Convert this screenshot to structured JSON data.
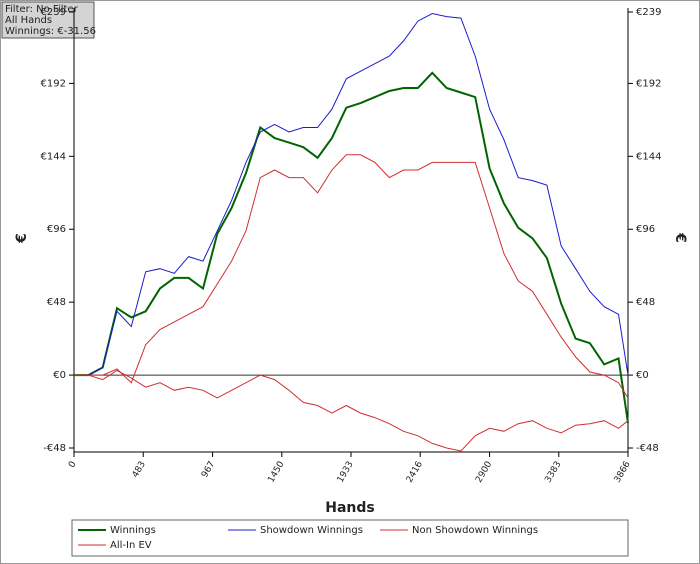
{
  "chart_data": {
    "type": "line",
    "info": [
      "Filter: No Filter",
      "All Hands",
      "Winnings: €-31.56"
    ],
    "x_label": "Hands",
    "y_label": "€",
    "y2_label": "€",
    "xlim": [
      0,
      3866
    ],
    "xticks": [
      0,
      483,
      967,
      1450,
      1933,
      2416,
      2900,
      3383,
      3866
    ],
    "ylim": [
      -48,
      239
    ],
    "yticks": [
      {
        "value": -48,
        "label": "-€48"
      },
      {
        "value": 0,
        "label": "€0"
      },
      {
        "value": 48,
        "label": "€48"
      },
      {
        "value": 96,
        "label": "€96"
      },
      {
        "value": 144,
        "label": "€144"
      },
      {
        "value": 192,
        "label": "€192"
      },
      {
        "value": 239,
        "label": "€239"
      }
    ],
    "y2lim": [
      -48,
      239
    ],
    "y2ticks": [
      {
        "value": -48,
        "label": "-€48"
      },
      {
        "value": 0,
        "label": "€0"
      },
      {
        "value": 48,
        "label": "€48"
      },
      {
        "value": 96,
        "label": "€96"
      },
      {
        "value": 144,
        "label": "€144"
      },
      {
        "value": 192,
        "label": "€192"
      },
      {
        "value": 239,
        "label": "€239"
      }
    ],
    "x": [
      0,
      100,
      200,
      300,
      400,
      500,
      600,
      700,
      800,
      900,
      1000,
      1100,
      1200,
      1300,
      1400,
      1500,
      1600,
      1700,
      1800,
      1900,
      2000,
      2100,
      2200,
      2300,
      2400,
      2500,
      2600,
      2700,
      2800,
      2900,
      3000,
      3100,
      3200,
      3300,
      3400,
      3500,
      3600,
      3700,
      3800,
      3866
    ],
    "series": [
      {
        "name": "Winnings",
        "color": "#006400",
        "values": [
          0,
          0,
          5,
          44,
          38,
          42,
          57,
          64,
          64,
          57,
          93,
          110,
          133,
          163,
          156,
          153,
          150,
          143,
          156,
          176,
          179,
          183,
          187,
          189,
          189,
          199,
          189,
          186,
          183,
          136,
          113,
          97,
          90,
          77,
          47,
          24,
          21,
          7,
          11,
          -31.56
        ]
      },
      {
        "name": "Showdown Winnings",
        "color": "#1c1ccc",
        "values": [
          0,
          0,
          5,
          42,
          32,
          68,
          70,
          67,
          78,
          75,
          95,
          115,
          140,
          160,
          165,
          160,
          163,
          163,
          175,
          195,
          200,
          205,
          210,
          220,
          233,
          238,
          236,
          235,
          210,
          175,
          155,
          130,
          128,
          125,
          85,
          70,
          55,
          45,
          40,
          0
        ]
      },
      {
        "name": "Non Showdown Winnings",
        "color": "#d03030",
        "values": [
          0,
          0,
          0,
          4,
          -5,
          20,
          30,
          35,
          40,
          45,
          60,
          75,
          95,
          130,
          135,
          130,
          130,
          120,
          135,
          145,
          145,
          140,
          130,
          135,
          135,
          140,
          140,
          140,
          140,
          110,
          80,
          62,
          55,
          40,
          25,
          12,
          2,
          0,
          -5,
          -15
        ]
      },
      {
        "name": "All-In EV",
        "color": "#d03030",
        "values": [
          0,
          0,
          -3,
          3,
          -2,
          -8,
          -5,
          -10,
          -8,
          -10,
          -15,
          -10,
          -5,
          0,
          -3,
          -10,
          -18,
          -20,
          -25,
          -20,
          -25,
          -28,
          -32,
          -37,
          -40,
          -45,
          -48,
          -50,
          -40,
          -35,
          -37,
          -32,
          -30,
          -35,
          -38,
          -33,
          -32,
          -30,
          -35,
          -30
        ]
      }
    ]
  }
}
